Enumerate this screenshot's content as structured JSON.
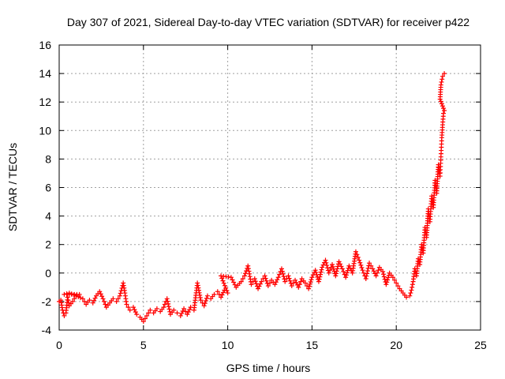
{
  "chart_data": {
    "type": "scatter",
    "title": "Day 307 of 2021, Sidereal Day-to-day VTEC variation (SDTVAR) for receiver p422",
    "xlabel": "GPS time / hours",
    "ylabel": "SDTVAR / TECUs",
    "xlim": [
      0,
      25
    ],
    "ylim": [
      -4,
      16
    ],
    "x_ticks": [
      "0",
      "5",
      "10",
      "15",
      "20",
      "25"
    ],
    "y_ticks": [
      "-4",
      "-2",
      "0",
      "2",
      "4",
      "6",
      "8",
      "10",
      "12",
      "14",
      "16"
    ],
    "grid": true,
    "legend": "none",
    "marker": "+",
    "colors": {
      "series": "#ff0000",
      "grid": "#a0a0a0",
      "axis": "#000000"
    },
    "series": [
      {
        "points": [
          [
            0.0,
            -2.0
          ],
          [
            0.1,
            -1.9
          ],
          [
            0.2,
            -2.6
          ],
          [
            0.3,
            -3.0
          ],
          [
            0.4,
            -2.8
          ],
          [
            0.5,
            -1.7
          ],
          [
            0.6,
            -2.3
          ],
          [
            0.8,
            -2.0
          ],
          [
            1.0,
            -1.6
          ],
          [
            1.2,
            -1.5
          ],
          [
            0.3,
            -1.5
          ],
          [
            0.6,
            -1.4
          ],
          [
            1.4,
            -1.8
          ],
          [
            1.6,
            -2.2
          ],
          [
            1.8,
            -1.9
          ],
          [
            2.0,
            -2.1
          ],
          [
            2.2,
            -1.6
          ],
          [
            2.4,
            -1.3
          ],
          [
            2.6,
            -1.8
          ],
          [
            2.8,
            -2.4
          ],
          [
            3.0,
            -2.1
          ],
          [
            3.2,
            -1.8
          ],
          [
            3.4,
            -2.0
          ],
          [
            3.6,
            -1.6
          ],
          [
            3.8,
            -0.7
          ],
          [
            3.9,
            -1.4
          ],
          [
            4.0,
            -2.2
          ],
          [
            4.2,
            -2.6
          ],
          [
            4.4,
            -2.4
          ],
          [
            4.6,
            -2.9
          ],
          [
            4.8,
            -3.1
          ],
          [
            5.0,
            -3.4
          ],
          [
            5.2,
            -3.0
          ],
          [
            5.4,
            -2.6
          ],
          [
            5.6,
            -2.8
          ],
          [
            5.8,
            -2.5
          ],
          [
            6.0,
            -2.7
          ],
          [
            6.2,
            -2.4
          ],
          [
            6.4,
            -1.8
          ],
          [
            6.6,
            -2.9
          ],
          [
            6.8,
            -2.6
          ],
          [
            7.0,
            -2.8
          ],
          [
            7.2,
            -3.0
          ],
          [
            7.4,
            -2.5
          ],
          [
            7.6,
            -2.9
          ],
          [
            7.8,
            -2.4
          ],
          [
            8.0,
            -2.6
          ],
          [
            8.2,
            -0.7
          ],
          [
            8.4,
            -1.9
          ],
          [
            8.6,
            -2.3
          ],
          [
            8.8,
            -1.6
          ],
          [
            9.0,
            -1.8
          ],
          [
            9.2,
            -1.5
          ],
          [
            9.4,
            -1.3
          ],
          [
            9.6,
            -1.7
          ],
          [
            9.8,
            -1.2
          ],
          [
            10.0,
            -1.4
          ],
          [
            9.6,
            -0.2
          ],
          [
            10.2,
            -0.3
          ],
          [
            10.5,
            -1.0
          ],
          [
            10.8,
            -0.6
          ],
          [
            11.0,
            -0.2
          ],
          [
            11.2,
            0.5
          ],
          [
            11.4,
            -0.8
          ],
          [
            11.6,
            -0.4
          ],
          [
            11.8,
            -1.1
          ],
          [
            12.0,
            -0.6
          ],
          [
            12.2,
            -0.2
          ],
          [
            12.4,
            -0.9
          ],
          [
            12.6,
            -0.5
          ],
          [
            12.8,
            -0.8
          ],
          [
            13.0,
            -0.3
          ],
          [
            13.2,
            0.3
          ],
          [
            13.4,
            -0.6
          ],
          [
            13.6,
            -0.2
          ],
          [
            13.8,
            -0.9
          ],
          [
            14.0,
            -0.5
          ],
          [
            14.2,
            -1.0
          ],
          [
            14.4,
            -0.4
          ],
          [
            14.6,
            -0.7
          ],
          [
            14.8,
            -1.1
          ],
          [
            15.0,
            -0.3
          ],
          [
            15.2,
            0.2
          ],
          [
            15.4,
            -0.6
          ],
          [
            15.6,
            0.4
          ],
          [
            15.8,
            0.9
          ],
          [
            16.0,
            0.0
          ],
          [
            16.2,
            0.6
          ],
          [
            16.4,
            -0.2
          ],
          [
            16.6,
            0.8
          ],
          [
            16.8,
            0.3
          ],
          [
            17.0,
            -0.3
          ],
          [
            17.2,
            0.5
          ],
          [
            17.4,
            0.0
          ],
          [
            17.6,
            1.5
          ],
          [
            17.8,
            0.9
          ],
          [
            18.0,
            0.2
          ],
          [
            18.2,
            -0.4
          ],
          [
            18.4,
            0.7
          ],
          [
            18.6,
            0.3
          ],
          [
            18.8,
            -0.2
          ],
          [
            19.0,
            0.4
          ],
          [
            19.2,
            0.1
          ],
          [
            19.4,
            -0.8
          ],
          [
            19.6,
            0.0
          ],
          [
            19.8,
            -0.3
          ],
          [
            20.0,
            -0.7
          ],
          [
            20.2,
            -1.1
          ],
          [
            20.4,
            -1.4
          ],
          [
            20.6,
            -1.7
          ],
          [
            20.8,
            -1.6
          ],
          [
            20.9,
            -1.2
          ],
          [
            21.0,
            -0.6
          ],
          [
            21.1,
            0.3
          ],
          [
            21.2,
            -0.2
          ],
          [
            21.3,
            1.0
          ],
          [
            21.4,
            0.6
          ],
          [
            21.5,
            2.0
          ],
          [
            21.6,
            1.4
          ],
          [
            21.7,
            3.2
          ],
          [
            21.8,
            2.5
          ],
          [
            21.9,
            4.5
          ],
          [
            22.0,
            3.6
          ],
          [
            22.1,
            5.4
          ],
          [
            22.2,
            4.6
          ],
          [
            22.3,
            6.5
          ],
          [
            22.4,
            5.6
          ],
          [
            22.5,
            7.6
          ],
          [
            22.6,
            6.8
          ],
          [
            22.7,
            9.5
          ],
          [
            22.75,
            10.4
          ],
          [
            22.8,
            11.2
          ],
          [
            22.85,
            11.4
          ],
          [
            22.6,
            12.2
          ],
          [
            22.65,
            13.2
          ],
          [
            22.75,
            13.8
          ],
          [
            22.85,
            14.0
          ]
        ]
      }
    ]
  }
}
